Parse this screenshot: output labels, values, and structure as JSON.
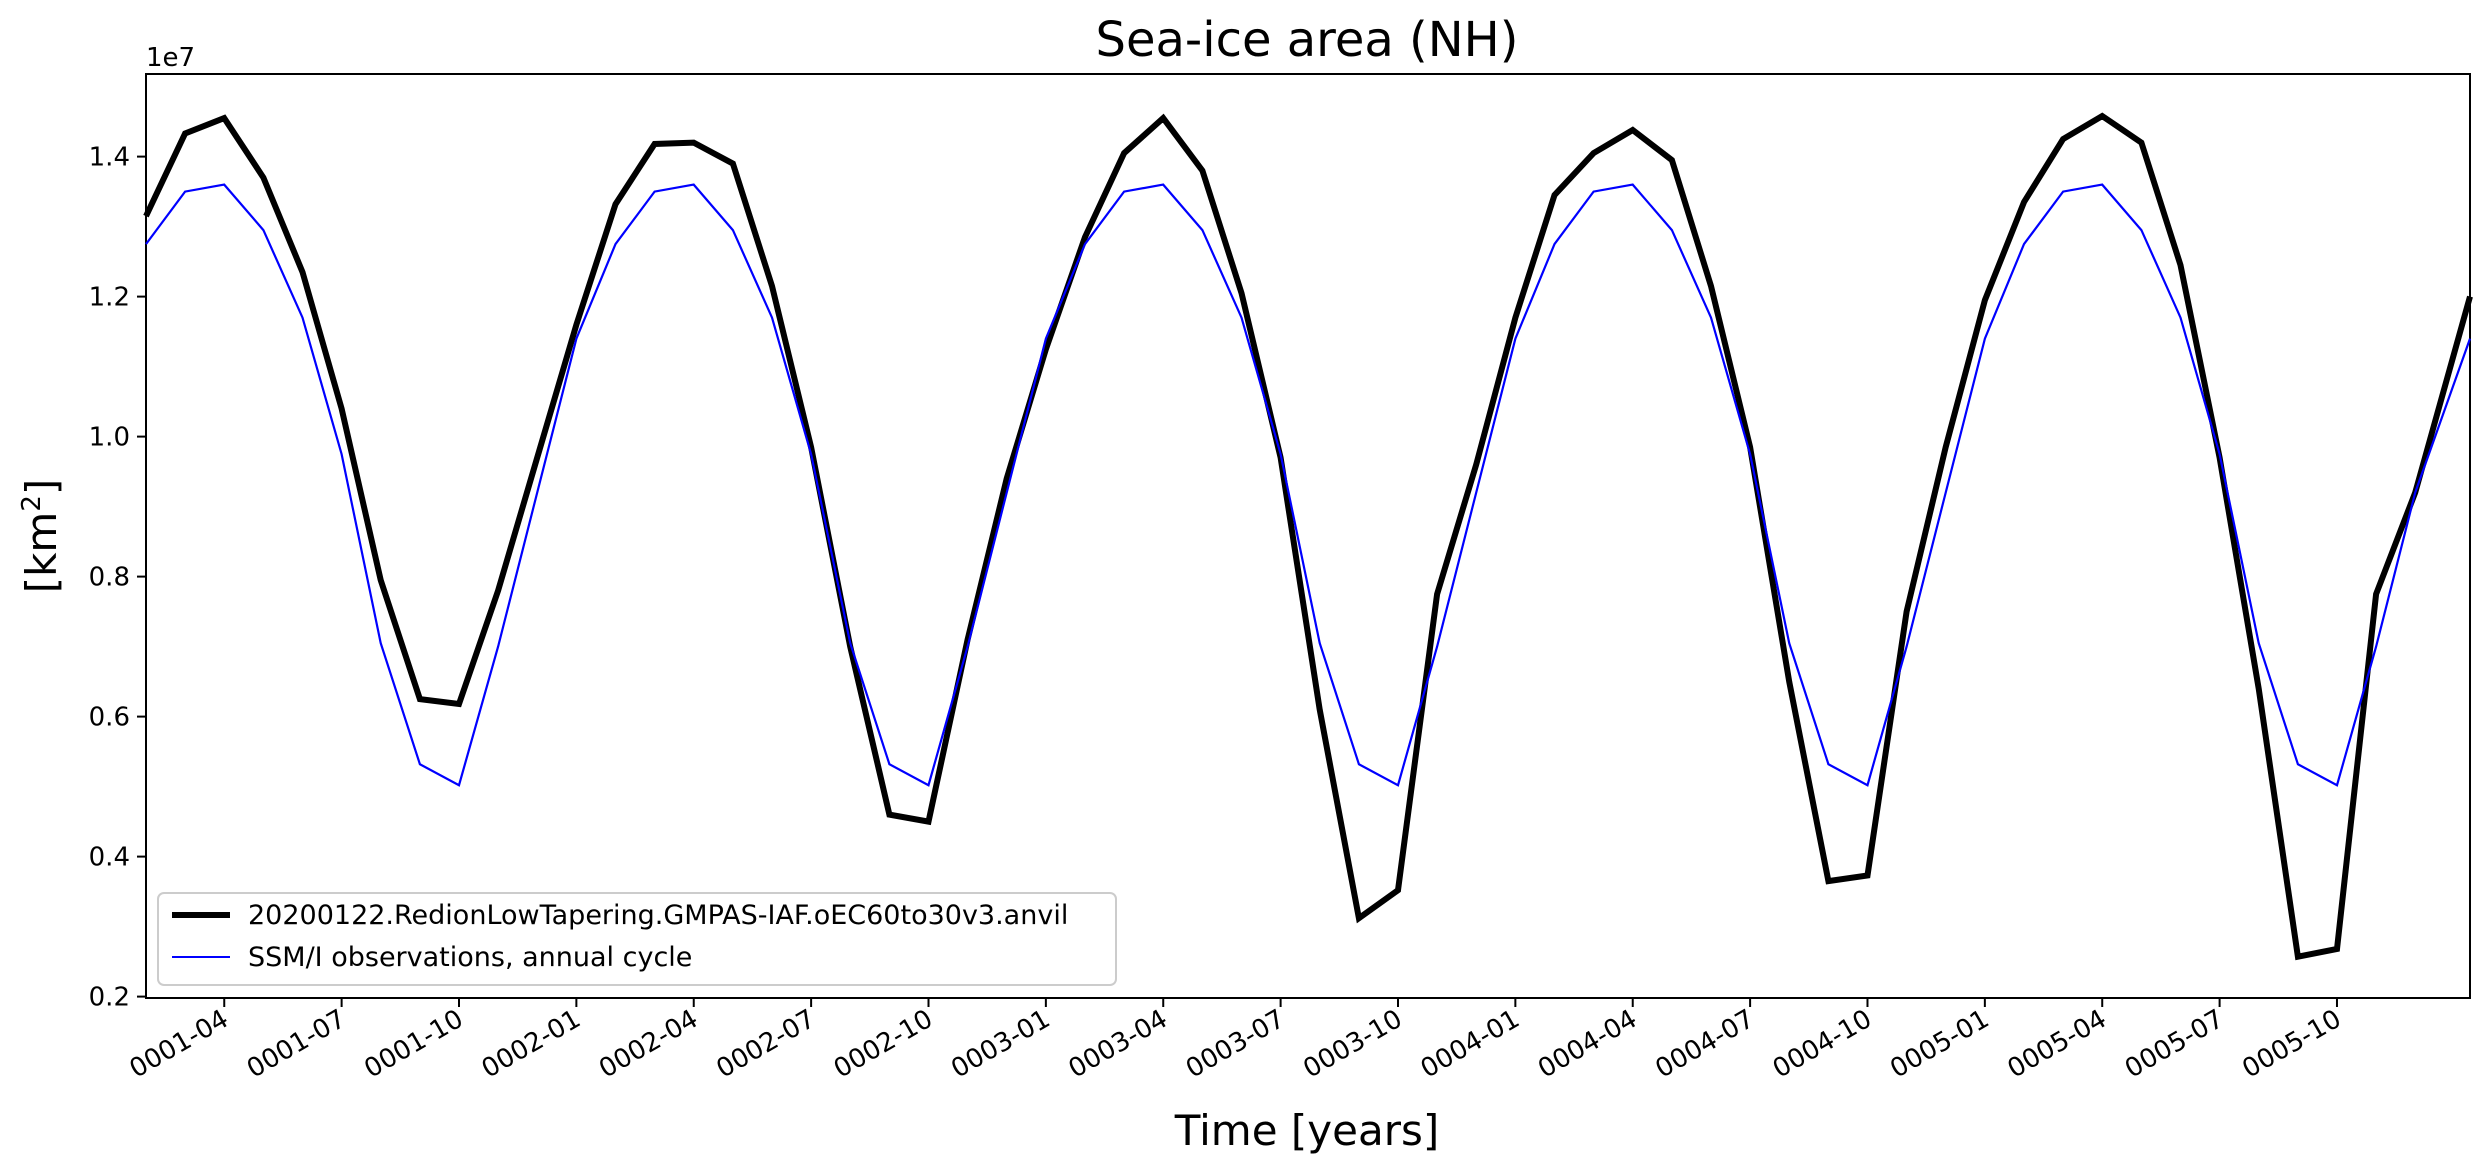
{
  "chart_data": {
    "type": "line",
    "title": "Sea-ice area (NH)",
    "xlabel": "Time [years]",
    "ylabel": "[km²]",
    "ylabel_base": "[km",
    "ylabel_exp": "2",
    "ylabel_close": "]",
    "y_offset_label": "1e7",
    "ylim": [
      0.198,
      1.518
    ],
    "yticks": [
      0.2,
      0.4,
      0.6,
      0.8,
      1.0,
      1.2,
      1.4
    ],
    "ytick_labels": [
      "0.2",
      "0.4",
      "0.6",
      "0.8",
      "1.0",
      "1.2",
      "1.4"
    ],
    "xlim": [
      0,
      59.4
    ],
    "xticks": [
      2,
      5,
      8,
      11,
      14,
      17,
      20,
      23,
      26,
      29,
      32,
      35,
      38,
      41,
      44,
      47,
      50,
      53,
      56
    ],
    "xtick_labels": [
      "0001-04",
      "0001-07",
      "0001-10",
      "0002-01",
      "0002-04",
      "0002-07",
      "0002-10",
      "0003-01",
      "0003-04",
      "0003-07",
      "0003-10",
      "0004-01",
      "0004-04",
      "0004-07",
      "0004-10",
      "0005-01",
      "0005-04",
      "0005-07",
      "0005-10"
    ],
    "series": [
      {
        "name": "20200122.RedionLowTapering.GMPAS-IAF.oEC60to30v3.anvil",
        "color": "#000000",
        "x": [
          0.0,
          1.0,
          2.0,
          3.0,
          4.0,
          5.0,
          6.0,
          7.0,
          8.0,
          9.0,
          10.0,
          11.0,
          12.0,
          13.0,
          14.0,
          15.0,
          16.0,
          17.0,
          18.0,
          19.0,
          20.0,
          21.0,
          22.0,
          23.0,
          24.0,
          25.0,
          26.0,
          27.0,
          28.0,
          29.0,
          30.0,
          31.0,
          32.0,
          33.0,
          34.0,
          35.0,
          36.0,
          37.0,
          38.0,
          39.0,
          40.0,
          41.0,
          42.0,
          43.0,
          44.0,
          45.0,
          46.0,
          47.0,
          48.0,
          49.0,
          50.0,
          51.0,
          52.0,
          53.0,
          54.0,
          55.0,
          56.0,
          57.0,
          58.0,
          59.4
        ],
        "values": [
          1.315,
          1.433,
          1.455,
          1.37,
          1.235,
          1.04,
          0.795,
          0.625,
          0.618,
          0.78,
          0.97,
          1.16,
          1.332,
          1.418,
          1.42,
          1.39,
          1.215,
          0.985,
          0.7,
          0.46,
          0.45,
          0.71,
          0.94,
          1.125,
          1.285,
          1.405,
          1.455,
          1.38,
          1.205,
          0.97,
          0.61,
          0.312,
          0.352,
          0.775,
          0.96,
          1.17,
          1.345,
          1.405,
          1.438,
          1.395,
          1.215,
          0.985,
          0.65,
          0.365,
          0.373,
          0.75,
          0.985,
          1.195,
          1.335,
          1.425,
          1.458,
          1.42,
          1.245,
          0.97,
          0.64,
          0.257,
          0.268,
          0.775,
          0.92,
          1.2
        ]
      },
      {
        "name": "SSM/I observations, annual cycle",
        "color": "#0000ff",
        "x": [
          0.0,
          1.0,
          2.0,
          3.0,
          4.0,
          5.0,
          6.0,
          7.0,
          8.0,
          9.0,
          10.0,
          11.0,
          12.0,
          13.0,
          14.0,
          15.0,
          16.0,
          17.0,
          18.0,
          19.0,
          20.0,
          21.0,
          22.0,
          23.0,
          24.0,
          25.0,
          26.0,
          27.0,
          28.0,
          29.0,
          30.0,
          31.0,
          32.0,
          33.0,
          34.0,
          35.0,
          36.0,
          37.0,
          38.0,
          39.0,
          40.0,
          41.0,
          42.0,
          43.0,
          44.0,
          45.0,
          46.0,
          47.0,
          48.0,
          49.0,
          50.0,
          51.0,
          52.0,
          53.0,
          54.0,
          55.0,
          56.0,
          57.0,
          58.0,
          59.4
        ],
        "values": [
          1.275,
          1.35,
          1.36,
          1.295,
          1.17,
          0.975,
          0.705,
          0.532,
          0.502,
          0.7,
          0.92,
          1.14,
          1.275,
          1.35,
          1.36,
          1.295,
          1.17,
          0.975,
          0.705,
          0.532,
          0.502,
          0.7,
          0.92,
          1.14,
          1.275,
          1.35,
          1.36,
          1.295,
          1.17,
          0.975,
          0.705,
          0.532,
          0.502,
          0.7,
          0.92,
          1.14,
          1.275,
          1.35,
          1.36,
          1.295,
          1.17,
          0.975,
          0.705,
          0.532,
          0.502,
          0.7,
          0.92,
          1.14,
          1.275,
          1.35,
          1.36,
          1.295,
          1.17,
          0.975,
          0.705,
          0.532,
          0.502,
          0.7,
          0.92,
          1.14
        ]
      }
    ],
    "legend_position": "lower-left"
  }
}
